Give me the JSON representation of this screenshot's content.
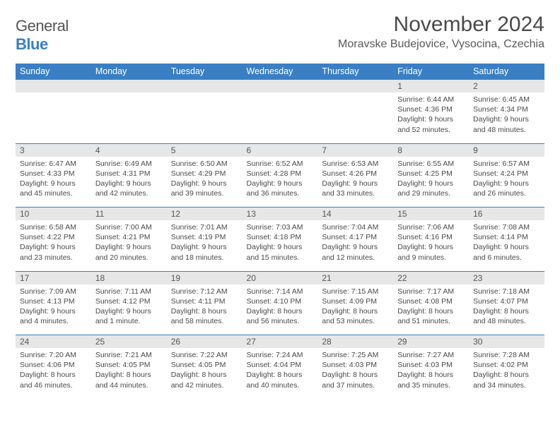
{
  "brand": {
    "word1": "General",
    "word2": "Blue"
  },
  "header": {
    "month_title": "November 2024",
    "location": "Moravske Budejovice, Vysocina, Czechia"
  },
  "colors": {
    "primary": "#3a7fc4",
    "header_bg": "#3a7fc4",
    "header_text": "#ffffff",
    "daynum_bg": "#e7e7e7",
    "body_text": "#4a4a4a",
    "page_bg": "#ffffff"
  },
  "typography": {
    "month_title_fontsize": 30,
    "location_fontsize": 16,
    "weekday_fontsize": 12.5,
    "daynum_fontsize": 12,
    "cell_fontsize": 10.5
  },
  "weekdays": [
    "Sunday",
    "Monday",
    "Tuesday",
    "Wednesday",
    "Thursday",
    "Friday",
    "Saturday"
  ],
  "weeks": [
    [
      null,
      null,
      null,
      null,
      null,
      {
        "d": "1",
        "sr": "Sunrise: 6:44 AM",
        "ss": "Sunset: 4:36 PM",
        "dl1": "Daylight: 9 hours",
        "dl2": "and 52 minutes."
      },
      {
        "d": "2",
        "sr": "Sunrise: 6:45 AM",
        "ss": "Sunset: 4:34 PM",
        "dl1": "Daylight: 9 hours",
        "dl2": "and 48 minutes."
      }
    ],
    [
      {
        "d": "3",
        "sr": "Sunrise: 6:47 AM",
        "ss": "Sunset: 4:33 PM",
        "dl1": "Daylight: 9 hours",
        "dl2": "and 45 minutes."
      },
      {
        "d": "4",
        "sr": "Sunrise: 6:49 AM",
        "ss": "Sunset: 4:31 PM",
        "dl1": "Daylight: 9 hours",
        "dl2": "and 42 minutes."
      },
      {
        "d": "5",
        "sr": "Sunrise: 6:50 AM",
        "ss": "Sunset: 4:29 PM",
        "dl1": "Daylight: 9 hours",
        "dl2": "and 39 minutes."
      },
      {
        "d": "6",
        "sr": "Sunrise: 6:52 AM",
        "ss": "Sunset: 4:28 PM",
        "dl1": "Daylight: 9 hours",
        "dl2": "and 36 minutes."
      },
      {
        "d": "7",
        "sr": "Sunrise: 6:53 AM",
        "ss": "Sunset: 4:26 PM",
        "dl1": "Daylight: 9 hours",
        "dl2": "and 33 minutes."
      },
      {
        "d": "8",
        "sr": "Sunrise: 6:55 AM",
        "ss": "Sunset: 4:25 PM",
        "dl1": "Daylight: 9 hours",
        "dl2": "and 29 minutes."
      },
      {
        "d": "9",
        "sr": "Sunrise: 6:57 AM",
        "ss": "Sunset: 4:24 PM",
        "dl1": "Daylight: 9 hours",
        "dl2": "and 26 minutes."
      }
    ],
    [
      {
        "d": "10",
        "sr": "Sunrise: 6:58 AM",
        "ss": "Sunset: 4:22 PM",
        "dl1": "Daylight: 9 hours",
        "dl2": "and 23 minutes."
      },
      {
        "d": "11",
        "sr": "Sunrise: 7:00 AM",
        "ss": "Sunset: 4:21 PM",
        "dl1": "Daylight: 9 hours",
        "dl2": "and 20 minutes."
      },
      {
        "d": "12",
        "sr": "Sunrise: 7:01 AM",
        "ss": "Sunset: 4:19 PM",
        "dl1": "Daylight: 9 hours",
        "dl2": "and 18 minutes."
      },
      {
        "d": "13",
        "sr": "Sunrise: 7:03 AM",
        "ss": "Sunset: 4:18 PM",
        "dl1": "Daylight: 9 hours",
        "dl2": "and 15 minutes."
      },
      {
        "d": "14",
        "sr": "Sunrise: 7:04 AM",
        "ss": "Sunset: 4:17 PM",
        "dl1": "Daylight: 9 hours",
        "dl2": "and 12 minutes."
      },
      {
        "d": "15",
        "sr": "Sunrise: 7:06 AM",
        "ss": "Sunset: 4:16 PM",
        "dl1": "Daylight: 9 hours",
        "dl2": "and 9 minutes."
      },
      {
        "d": "16",
        "sr": "Sunrise: 7:08 AM",
        "ss": "Sunset: 4:14 PM",
        "dl1": "Daylight: 9 hours",
        "dl2": "and 6 minutes."
      }
    ],
    [
      {
        "d": "17",
        "sr": "Sunrise: 7:09 AM",
        "ss": "Sunset: 4:13 PM",
        "dl1": "Daylight: 9 hours",
        "dl2": "and 4 minutes."
      },
      {
        "d": "18",
        "sr": "Sunrise: 7:11 AM",
        "ss": "Sunset: 4:12 PM",
        "dl1": "Daylight: 9 hours",
        "dl2": "and 1 minute."
      },
      {
        "d": "19",
        "sr": "Sunrise: 7:12 AM",
        "ss": "Sunset: 4:11 PM",
        "dl1": "Daylight: 8 hours",
        "dl2": "and 58 minutes."
      },
      {
        "d": "20",
        "sr": "Sunrise: 7:14 AM",
        "ss": "Sunset: 4:10 PM",
        "dl1": "Daylight: 8 hours",
        "dl2": "and 56 minutes."
      },
      {
        "d": "21",
        "sr": "Sunrise: 7:15 AM",
        "ss": "Sunset: 4:09 PM",
        "dl1": "Daylight: 8 hours",
        "dl2": "and 53 minutes."
      },
      {
        "d": "22",
        "sr": "Sunrise: 7:17 AM",
        "ss": "Sunset: 4:08 PM",
        "dl1": "Daylight: 8 hours",
        "dl2": "and 51 minutes."
      },
      {
        "d": "23",
        "sr": "Sunrise: 7:18 AM",
        "ss": "Sunset: 4:07 PM",
        "dl1": "Daylight: 8 hours",
        "dl2": "and 48 minutes."
      }
    ],
    [
      {
        "d": "24",
        "sr": "Sunrise: 7:20 AM",
        "ss": "Sunset: 4:06 PM",
        "dl1": "Daylight: 8 hours",
        "dl2": "and 46 minutes."
      },
      {
        "d": "25",
        "sr": "Sunrise: 7:21 AM",
        "ss": "Sunset: 4:05 PM",
        "dl1": "Daylight: 8 hours",
        "dl2": "and 44 minutes."
      },
      {
        "d": "26",
        "sr": "Sunrise: 7:22 AM",
        "ss": "Sunset: 4:05 PM",
        "dl1": "Daylight: 8 hours",
        "dl2": "and 42 minutes."
      },
      {
        "d": "27",
        "sr": "Sunrise: 7:24 AM",
        "ss": "Sunset: 4:04 PM",
        "dl1": "Daylight: 8 hours",
        "dl2": "and 40 minutes."
      },
      {
        "d": "28",
        "sr": "Sunrise: 7:25 AM",
        "ss": "Sunset: 4:03 PM",
        "dl1": "Daylight: 8 hours",
        "dl2": "and 37 minutes."
      },
      {
        "d": "29",
        "sr": "Sunrise: 7:27 AM",
        "ss": "Sunset: 4:03 PM",
        "dl1": "Daylight: 8 hours",
        "dl2": "and 35 minutes."
      },
      {
        "d": "30",
        "sr": "Sunrise: 7:28 AM",
        "ss": "Sunset: 4:02 PM",
        "dl1": "Daylight: 8 hours",
        "dl2": "and 34 minutes."
      }
    ]
  ]
}
